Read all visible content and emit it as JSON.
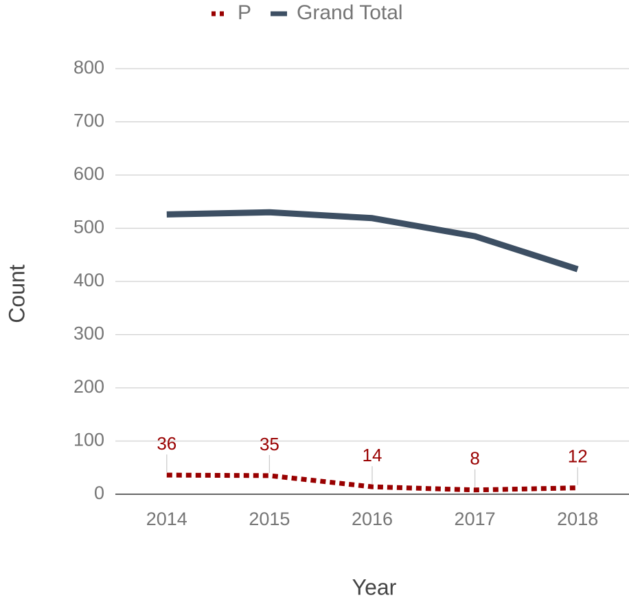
{
  "chart_data": {
    "type": "line",
    "x_label": "Year",
    "y_label": "Count",
    "categories": [
      "2014",
      "2015",
      "2016",
      "2017",
      "2018"
    ],
    "series": [
      {
        "name": "P",
        "color": "#990000",
        "style": "dotted",
        "values": [
          36,
          35,
          14,
          8,
          12
        ],
        "data_labels": true
      },
      {
        "name": "Grand Total",
        "color": "#3d4f63",
        "style": "solid",
        "values": [
          526,
          530,
          519,
          485,
          423
        ],
        "data_labels": false
      }
    ],
    "ylim": [
      0,
      800
    ],
    "yticks": [
      0,
      100,
      200,
      300,
      400,
      500,
      600,
      700,
      800
    ],
    "grid": true,
    "legend": "top"
  }
}
